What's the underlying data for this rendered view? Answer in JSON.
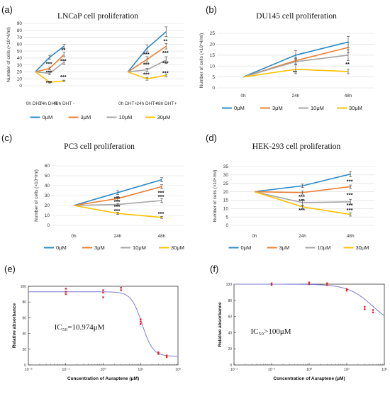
{
  "chart_data": [
    {
      "panel": "(a)",
      "type": "line",
      "title": "LNCaP cell proliferation",
      "ylabel": "Number of cells (×10^4/ml)",
      "ylim": [
        0,
        90
      ],
      "yticks": [
        0,
        10,
        20,
        30,
        40,
        50,
        60,
        70,
        80,
        90
      ],
      "groups": [
        {
          "categories": [
            "0h DHT -",
            "24h DHT -",
            "48h DHT -"
          ]
        },
        {
          "categories": [
            "0h DHT+",
            "24h DHT+",
            "48h DHT+"
          ]
        }
      ],
      "series": [
        {
          "name": "0μM",
          "color": "#2e8bc9",
          "groups": [
            [
              20,
              41,
              57
            ],
            [
              20,
              54,
              78
            ]
          ],
          "err": [
            [
              0,
              3,
              3
            ],
            [
              0,
              5,
              7
            ]
          ]
        },
        {
          "name": "3μM",
          "color": "#ed7d31",
          "groups": [
            [
              20,
              25,
              45
            ],
            [
              20,
              38,
              57
            ]
          ],
          "err": [
            [
              0,
              2,
              3
            ],
            [
              0,
              4,
              4
            ]
          ]
        },
        {
          "name": "10μM",
          "color": "#a5a5a5",
          "groups": [
            [
              20,
              18,
              34
            ],
            [
              20,
              23,
              37
            ]
          ],
          "err": [
            [
              0,
              2,
              3
            ],
            [
              0,
              2,
              5
            ]
          ]
        },
        {
          "name": "30μM",
          "color": "#ffc000",
          "groups": [
            [
              20,
              5,
              7
            ],
            [
              20,
              10,
              15
            ]
          ],
          "err": [
            [
              0,
              1,
              1
            ],
            [
              0,
              2,
              2
            ]
          ]
        }
      ],
      "annotations": [
        {
          "text": "**",
          "g": 0,
          "x": 2,
          "y": 49
        },
        {
          "text": "***",
          "g": 0,
          "x": 1,
          "y": 29
        },
        {
          "text": "***",
          "g": 0,
          "x": 2,
          "y": 33
        },
        {
          "text": "***",
          "g": 0,
          "x": 1,
          "y": 17
        },
        {
          "text": "***",
          "g": 0,
          "x": 2,
          "y": 10
        },
        {
          "text": "***",
          "g": 0,
          "x": 1,
          "y": 2
        },
        {
          "text": "**",
          "g": 1,
          "x": 2,
          "y": 62
        },
        {
          "text": "***",
          "g": 1,
          "x": 1,
          "y": 43
        },
        {
          "text": "***",
          "g": 1,
          "x": 2,
          "y": 45
        },
        {
          "text": "***",
          "g": 1,
          "x": 1,
          "y": 28
        },
        {
          "text": "***",
          "g": 1,
          "x": 2,
          "y": 30
        },
        {
          "text": "***",
          "g": 1,
          "x": 1,
          "y": 14
        },
        {
          "text": "***",
          "g": 1,
          "x": 2,
          "y": 16
        }
      ]
    },
    {
      "panel": "(b)",
      "type": "line",
      "title": "DU145 cell proliferation",
      "ylabel": "Number of cells (×10^4/ml)",
      "ylim": [
        0,
        25
      ],
      "yticks": [
        0,
        5,
        10,
        15,
        20,
        25
      ],
      "categories": [
        "0h",
        "24h",
        "48h"
      ],
      "series": [
        {
          "name": "0μM",
          "color": "#2e8bc9",
          "values": [
            5,
            15,
            21
          ],
          "err": [
            0,
            2,
            2.5
          ]
        },
        {
          "name": "3μM",
          "color": "#ed7d31",
          "values": [
            5,
            12.5,
            18.5
          ],
          "err": [
            0,
            1.5,
            2.5
          ]
        },
        {
          "name": "10μM",
          "color": "#a5a5a5",
          "values": [
            5,
            12,
            15
          ],
          "err": [
            0,
            1.5,
            2.5
          ]
        },
        {
          "name": "30μM",
          "color": "#ffc000",
          "values": [
            5,
            8.5,
            7.5
          ],
          "err": [
            0,
            2,
            1
          ]
        }
      ],
      "annotations": [
        {
          "text": "**",
          "x": 1,
          "y": 6.3
        },
        {
          "text": "**",
          "x": 2,
          "y": 10
        }
      ]
    },
    {
      "panel": "(c)",
      "type": "line",
      "title": "PC3 cell proliferation",
      "ylabel": "Number of cells (×10⁴/ml)",
      "ylim": [
        0,
        60
      ],
      "yticks": [
        0,
        10,
        20,
        30,
        40,
        50,
        60
      ],
      "categories": [
        "0h",
        "24h",
        "48h"
      ],
      "series": [
        {
          "name": "0μM",
          "color": "#2e8bc9",
          "values": [
            20,
            33,
            46
          ],
          "err": [
            0,
            2,
            2
          ]
        },
        {
          "name": "3μM",
          "color": "#ed7d31",
          "values": [
            20,
            27,
            39
          ],
          "err": [
            0,
            2,
            2
          ]
        },
        {
          "name": "10μM",
          "color": "#a5a5a5",
          "values": [
            20,
            21,
            25
          ],
          "err": [
            0,
            1,
            2
          ]
        },
        {
          "name": "30μM",
          "color": "#ffc000",
          "values": [
            20,
            12,
            8
          ],
          "err": [
            0,
            1,
            1
          ]
        }
      ],
      "annotations": [
        {
          "text": "***",
          "x": 1,
          "y": 25.5
        },
        {
          "text": "***",
          "x": 2,
          "y": 31
        },
        {
          "text": "***",
          "x": 1,
          "y": 22
        },
        {
          "text": "***",
          "x": 2,
          "y": 27
        },
        {
          "text": "***",
          "x": 1,
          "y": 17
        },
        {
          "text": "***",
          "x": 1,
          "y": 13
        },
        {
          "text": "***",
          "x": 2,
          "y": 10
        }
      ]
    },
    {
      "panel": "(d)",
      "type": "line",
      "title": "HEK-293 cell proliferation",
      "ylabel": "Number of cells (×10⁴/ml)",
      "ylim": [
        0,
        35
      ],
      "yticks": [
        0,
        5,
        10,
        15,
        20,
        25,
        30,
        35
      ],
      "categories": [
        "0h",
        "24h",
        "48h"
      ],
      "series": [
        {
          "name": "0μM",
          "color": "#2e8bc9",
          "values": [
            20,
            23.5,
            30.5
          ],
          "err": [
            0,
            1,
            1.5
          ]
        },
        {
          "name": "3μM",
          "color": "#ed7d31",
          "values": [
            20,
            19.5,
            23
          ],
          "err": [
            0,
            1,
            1
          ]
        },
        {
          "name": "10μM",
          "color": "#a5a5a5",
          "values": [
            20,
            13.5,
            14
          ],
          "err": [
            0,
            2,
            1.5
          ]
        },
        {
          "name": "30μM",
          "color": "#ffc000",
          "values": [
            20,
            11,
            6.5
          ],
          "err": [
            0,
            1,
            1
          ]
        }
      ],
      "annotations": [
        {
          "text": "***",
          "x": 2,
          "y": 25
        },
        {
          "text": "***",
          "x": 1,
          "y": 16
        },
        {
          "text": "***",
          "x": 2,
          "y": 17
        },
        {
          "text": "***",
          "x": 1,
          "y": 13.5
        },
        {
          "text": "***",
          "x": 2,
          "y": 11
        },
        {
          "text": "***",
          "x": 1,
          "y": 8
        },
        {
          "text": "***",
          "x": 2,
          "y": 8
        }
      ]
    },
    {
      "panel": "(e)",
      "type": "scatter",
      "xscale": "log",
      "xlabel": "Concentration of Auraptene (μM)",
      "ylabel": "Relative absorbance",
      "xlim": [
        0.01,
        100
      ],
      "ylim": [
        0,
        100
      ],
      "yticks": [
        0,
        20,
        40,
        60,
        80,
        100
      ],
      "xticks": [
        0.01,
        0.1,
        1,
        10,
        100
      ],
      "xtick_labels": [
        "10⁻²",
        "10⁻¹",
        "10⁰",
        "10¹",
        "10²"
      ],
      "ic50_text": "IC₅₀=10.974μM",
      "points_x": [
        0.1,
        0.1,
        0.1,
        1,
        1,
        1,
        3,
        3,
        10,
        10,
        10,
        30,
        30,
        50,
        50
      ],
      "points_y": [
        97,
        93,
        90,
        95,
        92,
        86,
        98,
        95,
        58,
        55,
        52,
        16,
        14,
        12,
        10
      ],
      "fit": {
        "top": 93,
        "bottom": 11,
        "ic50": 10.974,
        "hill": 3
      },
      "point_color": "#e8202a",
      "fit_color": "#7b7bd6"
    },
    {
      "panel": "(f)",
      "type": "scatter",
      "xscale": "log",
      "xlabel": "Concentration of Auraptene (μM)",
      "ylabel": "Relative absorbance",
      "xlim": [
        0.01,
        100
      ],
      "ylim": [
        0,
        100
      ],
      "yticks": [
        0,
        20,
        40,
        60,
        80,
        100
      ],
      "xticks": [
        0.01,
        0.1,
        1,
        10,
        100
      ],
      "xtick_labels": [
        "10⁻²",
        "10⁻¹",
        "10⁰",
        "10¹",
        "10²"
      ],
      "ic50_text": "IC₅₀>100μM",
      "points_x": [
        0.1,
        0.1,
        1,
        1,
        3,
        3,
        10,
        10,
        30,
        30,
        50,
        50
      ],
      "points_y": [
        101,
        99,
        102,
        100,
        101,
        99,
        94,
        92,
        72,
        69,
        68,
        65
      ],
      "fit": {
        "top": 100,
        "bottom": 45,
        "ic50": 50,
        "hill": 1.3
      },
      "point_color": "#e8202a",
      "fit_color": "#7b7bd6"
    }
  ]
}
